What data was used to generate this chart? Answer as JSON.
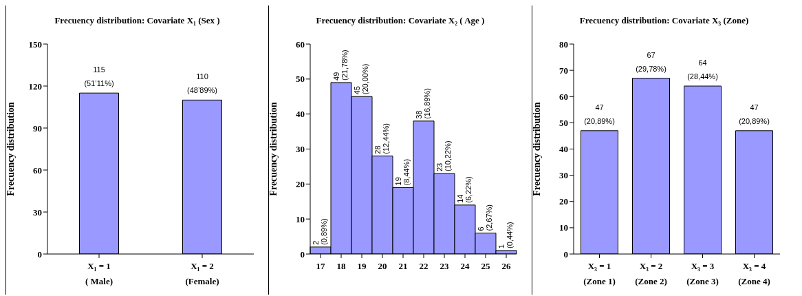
{
  "chart_data": [
    {
      "type": "bar",
      "title": "Frecuency distribution: Covariate X₁ (Sex )",
      "ylabel": "Frecuency distribution",
      "categories": [
        "X₁ = 1\n( Male)",
        "X₁ = 2\n(Female)"
      ],
      "values": [
        115,
        110
      ],
      "color": "#9999ff",
      "ylim": [
        0,
        150
      ],
      "yticks": [
        0,
        30,
        60,
        90,
        120,
        150
      ],
      "value_labels": [
        "115\n(51’11%)",
        "110\n(48’89%)"
      ]
    },
    {
      "type": "bar",
      "title": "Frecuency distribution: Covariate X₂ ( Age )",
      "ylabel": "Frecuency distribution",
      "categories": [
        "17",
        "18",
        "19",
        "20",
        "21",
        "22",
        "23",
        "24",
        "25",
        "26"
      ],
      "values": [
        2,
        49,
        45,
        28,
        19,
        38,
        23,
        14,
        6,
        1
      ],
      "color": "#9999ff",
      "ylim": [
        0,
        60
      ],
      "yticks": [
        0,
        10,
        20,
        30,
        40,
        50,
        60
      ],
      "value_labels": [
        "2\n(0,89%)",
        "49\n(21,78%)",
        "45\n(20,00%)",
        "28\n(12,44%)",
        "19\n(8,44%)",
        "38\n(16,89%)",
        "23\n(10,22%)",
        "14\n(6,22%)",
        "6\n(2,67%)",
        "1\n(0,44%)"
      ]
    },
    {
      "type": "bar",
      "title": "Frecuency distribution: Covariate X₃ (Zone)",
      "ylabel": "Frecuency distribution",
      "categories": [
        "X₃ = 1\n(Zone 1)",
        "X₃ = 2\n(Zone 2)",
        "X₃ = 3\n(Zone 3)",
        "X₃ = 4\n(Zone 4)"
      ],
      "values": [
        47,
        67,
        64,
        47
      ],
      "color": "#9999ff",
      "ylim": [
        0,
        80
      ],
      "yticks": [
        0,
        10,
        20,
        30,
        40,
        50,
        60,
        70,
        80
      ],
      "value_labels": [
        "47\n(20,89%)",
        "67\n(29,78%)",
        "64\n(28,44%)",
        "47\n(20,89%)"
      ]
    }
  ]
}
